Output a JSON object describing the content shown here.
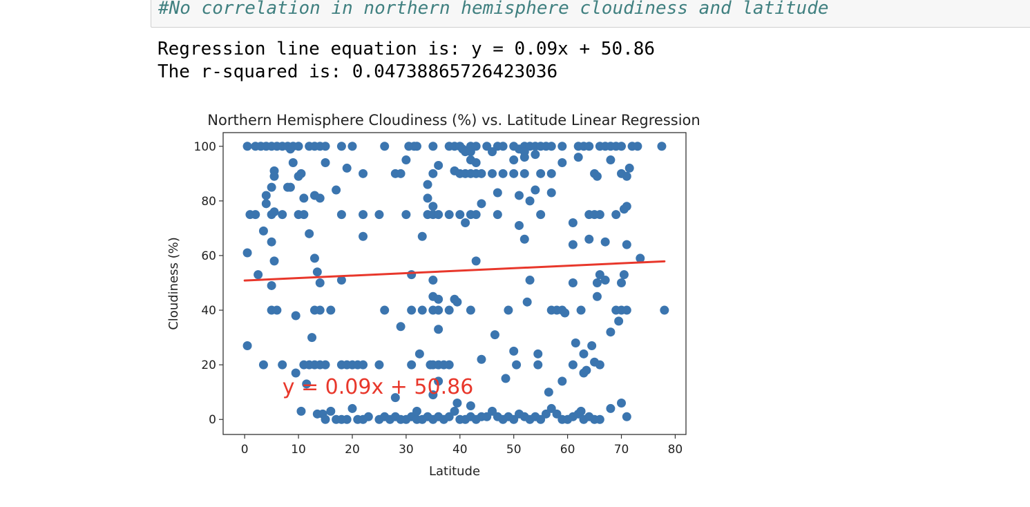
{
  "code_cell": {
    "comment": "#No correlation in northern hemisphere cloudiness and latitude"
  },
  "output": {
    "line1": "Regression line equation is: y = 0.09x + 50.86",
    "line2": "The r-squared is: 0.04738865726423036"
  },
  "chart_data": {
    "type": "scatter",
    "title": "Northern Hemisphere Cloudiness (%) vs. Latitude Linear Regression",
    "xlabel": "Latitude",
    "ylabel": "Cloudiness (%)",
    "xlim": [
      -4,
      82
    ],
    "ylim": [
      -5.5,
      105
    ],
    "xticks": [
      0,
      10,
      20,
      30,
      40,
      50,
      60,
      70,
      80
    ],
    "yticks": [
      0,
      20,
      40,
      60,
      80,
      100
    ],
    "grid": false,
    "point_color": "#3b75af",
    "regression": {
      "slope": 0.09,
      "intercept": 50.86,
      "x_range": [
        0,
        78
      ],
      "color": "#e8372b",
      "equation_label": "y = 0.09x + 50.86",
      "label_position": [
        7,
        12
      ]
    },
    "points": [
      [
        0.5,
        100
      ],
      [
        2,
        100
      ],
      [
        3,
        100
      ],
      [
        4,
        100
      ],
      [
        5,
        100
      ],
      [
        6,
        100
      ],
      [
        7,
        100
      ],
      [
        8,
        100
      ],
      [
        8.5,
        99
      ],
      [
        9,
        100
      ],
      [
        10,
        100
      ],
      [
        12,
        100
      ],
      [
        13,
        100
      ],
      [
        14,
        100
      ],
      [
        15,
        100
      ],
      [
        18,
        100
      ],
      [
        20,
        100
      ],
      [
        26,
        100
      ],
      [
        30.5,
        100
      ],
      [
        31.5,
        100
      ],
      [
        32,
        100
      ],
      [
        35,
        100
      ],
      [
        38,
        100
      ],
      [
        39,
        100
      ],
      [
        40,
        100
      ],
      [
        40.5,
        99
      ],
      [
        42,
        100
      ],
      [
        43,
        100
      ],
      [
        45,
        100
      ],
      [
        47,
        100
      ],
      [
        48,
        100
      ],
      [
        50,
        100
      ],
      [
        51,
        99
      ],
      [
        52,
        100
      ],
      [
        53,
        100
      ],
      [
        54,
        100
      ],
      [
        55,
        100
      ],
      [
        56,
        100
      ],
      [
        57,
        100
      ],
      [
        59,
        100
      ],
      [
        62,
        100
      ],
      [
        63,
        100
      ],
      [
        64,
        100
      ],
      [
        66,
        100
      ],
      [
        67,
        100
      ],
      [
        68,
        100
      ],
      [
        69,
        100
      ],
      [
        70,
        100
      ],
      [
        72,
        100
      ],
      [
        73,
        100
      ],
      [
        77.5,
        100
      ],
      [
        41,
        98
      ],
      [
        42,
        98
      ],
      [
        46,
        98
      ],
      [
        52,
        98
      ],
      [
        54,
        97
      ],
      [
        30,
        95
      ],
      [
        42,
        95
      ],
      [
        43,
        94
      ],
      [
        50,
        95
      ],
      [
        52,
        96
      ],
      [
        59,
        94
      ],
      [
        62,
        96
      ],
      [
        68,
        95
      ],
      [
        9,
        94
      ],
      [
        15,
        94
      ],
      [
        19,
        92
      ],
      [
        36,
        93
      ],
      [
        5.5,
        91
      ],
      [
        5.5,
        89
      ],
      [
        10,
        89
      ],
      [
        10.5,
        90
      ],
      [
        22,
        90
      ],
      [
        28,
        90
      ],
      [
        29,
        90
      ],
      [
        35,
        90
      ],
      [
        39,
        91
      ],
      [
        40,
        90
      ],
      [
        41,
        90
      ],
      [
        42,
        90
      ],
      [
        43,
        90
      ],
      [
        44,
        90
      ],
      [
        46,
        90
      ],
      [
        48,
        90
      ],
      [
        50,
        90
      ],
      [
        52,
        90
      ],
      [
        55,
        90
      ],
      [
        57,
        90
      ],
      [
        65,
        90
      ],
      [
        65.5,
        89
      ],
      [
        70,
        90
      ],
      [
        71,
        89
      ],
      [
        71.5,
        92
      ],
      [
        34,
        86
      ],
      [
        34,
        81
      ],
      [
        17,
        84
      ],
      [
        5,
        85
      ],
      [
        4,
        82
      ],
      [
        4,
        79
      ],
      [
        8,
        85
      ],
      [
        8.5,
        85
      ],
      [
        11,
        81
      ],
      [
        13,
        82
      ],
      [
        14,
        81
      ],
      [
        47,
        83
      ],
      [
        54,
        84
      ],
      [
        57,
        83
      ],
      [
        51,
        82
      ],
      [
        53,
        80
      ],
      [
        44,
        79
      ],
      [
        70.5,
        77
      ],
      [
        71,
        78
      ],
      [
        35,
        78
      ],
      [
        1,
        75
      ],
      [
        2,
        75
      ],
      [
        5,
        75
      ],
      [
        5.5,
        76
      ],
      [
        7,
        75
      ],
      [
        10,
        75
      ],
      [
        11,
        75
      ],
      [
        18,
        75
      ],
      [
        22,
        75
      ],
      [
        25,
        75
      ],
      [
        30,
        75
      ],
      [
        34,
        75
      ],
      [
        35,
        75
      ],
      [
        36,
        75
      ],
      [
        38,
        75
      ],
      [
        40,
        75
      ],
      [
        42,
        75
      ],
      [
        43,
        75
      ],
      [
        47,
        75
      ],
      [
        55,
        75
      ],
      [
        64,
        75
      ],
      [
        65,
        75
      ],
      [
        66,
        75
      ],
      [
        69,
        75
      ],
      [
        41,
        72
      ],
      [
        51,
        71
      ],
      [
        61,
        72
      ],
      [
        3.5,
        69
      ],
      [
        12,
        68
      ],
      [
        22,
        67
      ],
      [
        33,
        67
      ],
      [
        52,
        66
      ],
      [
        5,
        65
      ],
      [
        61,
        64
      ],
      [
        64,
        66
      ],
      [
        67,
        65
      ],
      [
        71,
        64
      ],
      [
        0.5,
        61
      ],
      [
        5.5,
        58
      ],
      [
        13,
        59
      ],
      [
        43,
        58
      ],
      [
        73.5,
        59
      ],
      [
        2.5,
        53
      ],
      [
        13.5,
        54
      ],
      [
        14,
        50
      ],
      [
        31,
        53
      ],
      [
        35,
        51
      ],
      [
        53,
        51
      ],
      [
        5,
        49
      ],
      [
        18,
        51
      ],
      [
        61,
        50
      ],
      [
        65.5,
        50
      ],
      [
        66,
        53
      ],
      [
        67,
        51
      ],
      [
        70,
        50
      ],
      [
        70.5,
        53
      ],
      [
        35,
        45
      ],
      [
        36,
        44
      ],
      [
        39,
        44
      ],
      [
        39.5,
        43
      ],
      [
        52.5,
        43
      ],
      [
        65.5,
        45
      ],
      [
        9.5,
        38
      ],
      [
        5,
        40
      ],
      [
        6,
        40
      ],
      [
        13,
        40
      ],
      [
        14,
        40
      ],
      [
        16,
        40
      ],
      [
        26,
        40
      ],
      [
        31,
        40
      ],
      [
        33,
        40
      ],
      [
        35,
        40
      ],
      [
        36,
        40
      ],
      [
        38,
        40
      ],
      [
        42,
        40
      ],
      [
        49,
        40
      ],
      [
        57,
        40
      ],
      [
        58,
        40
      ],
      [
        59,
        40
      ],
      [
        59.5,
        39
      ],
      [
        62.5,
        40
      ],
      [
        69,
        40
      ],
      [
        70,
        40
      ],
      [
        71,
        40
      ],
      [
        78,
        40
      ],
      [
        69.5,
        36
      ],
      [
        36,
        33
      ],
      [
        29,
        34
      ],
      [
        68,
        32
      ],
      [
        12.5,
        30
      ],
      [
        46.5,
        31
      ],
      [
        0.5,
        27
      ],
      [
        61.5,
        28
      ],
      [
        64.5,
        27
      ],
      [
        50,
        25
      ],
      [
        32.5,
        24
      ],
      [
        54.5,
        24
      ],
      [
        63,
        24
      ],
      [
        44,
        22
      ],
      [
        3.5,
        20
      ],
      [
        7,
        20
      ],
      [
        11,
        20
      ],
      [
        12,
        20
      ],
      [
        13,
        20
      ],
      [
        14,
        20
      ],
      [
        15,
        20
      ],
      [
        18,
        20
      ],
      [
        19,
        20
      ],
      [
        20,
        20
      ],
      [
        21,
        20
      ],
      [
        22,
        20
      ],
      [
        25,
        20
      ],
      [
        31,
        20
      ],
      [
        34.5,
        20
      ],
      [
        35,
        20
      ],
      [
        36,
        20
      ],
      [
        37,
        20
      ],
      [
        38,
        20
      ],
      [
        50.5,
        20
      ],
      [
        54.5,
        20
      ],
      [
        61,
        20
      ],
      [
        65,
        21
      ],
      [
        66,
        20
      ],
      [
        63,
        17
      ],
      [
        63.5,
        18
      ],
      [
        9.5,
        17
      ],
      [
        59,
        14
      ],
      [
        11.5,
        13
      ],
      [
        36,
        14
      ],
      [
        35,
        9
      ],
      [
        56.5,
        10
      ],
      [
        48.5,
        15
      ],
      [
        28,
        8
      ],
      [
        10.5,
        3
      ],
      [
        13.5,
        2
      ],
      [
        14.5,
        2
      ],
      [
        15,
        0
      ],
      [
        16,
        3
      ],
      [
        17,
        0
      ],
      [
        18,
        0
      ],
      [
        19,
        0
      ],
      [
        20,
        4
      ],
      [
        21,
        0
      ],
      [
        22,
        0
      ],
      [
        23,
        1
      ],
      [
        25,
        0
      ],
      [
        26,
        1
      ],
      [
        27,
        0
      ],
      [
        28,
        1
      ],
      [
        29,
        0
      ],
      [
        30,
        0
      ],
      [
        31,
        1
      ],
      [
        32,
        0
      ],
      [
        32,
        3
      ],
      [
        33,
        0
      ],
      [
        34,
        1
      ],
      [
        35,
        0
      ],
      [
        36,
        1
      ],
      [
        37,
        0
      ],
      [
        38,
        1
      ],
      [
        39,
        3
      ],
      [
        39.5,
        6
      ],
      [
        40,
        0
      ],
      [
        41,
        0
      ],
      [
        42,
        1
      ],
      [
        42,
        5
      ],
      [
        43,
        0
      ],
      [
        44,
        1
      ],
      [
        45,
        1
      ],
      [
        46,
        3
      ],
      [
        47,
        1
      ],
      [
        48,
        0
      ],
      [
        49,
        1
      ],
      [
        50,
        0
      ],
      [
        51,
        2
      ],
      [
        52,
        1
      ],
      [
        53,
        0
      ],
      [
        54,
        1
      ],
      [
        55,
        0
      ],
      [
        56,
        2
      ],
      [
        57,
        4
      ],
      [
        58,
        2
      ],
      [
        59,
        0
      ],
      [
        60,
        0
      ],
      [
        61,
        1
      ],
      [
        62,
        2
      ],
      [
        62.5,
        3
      ],
      [
        63,
        0
      ],
      [
        64,
        1
      ],
      [
        65,
        0
      ],
      [
        66,
        0
      ],
      [
        68,
        4
      ],
      [
        70,
        6
      ],
      [
        71,
        1
      ]
    ]
  }
}
